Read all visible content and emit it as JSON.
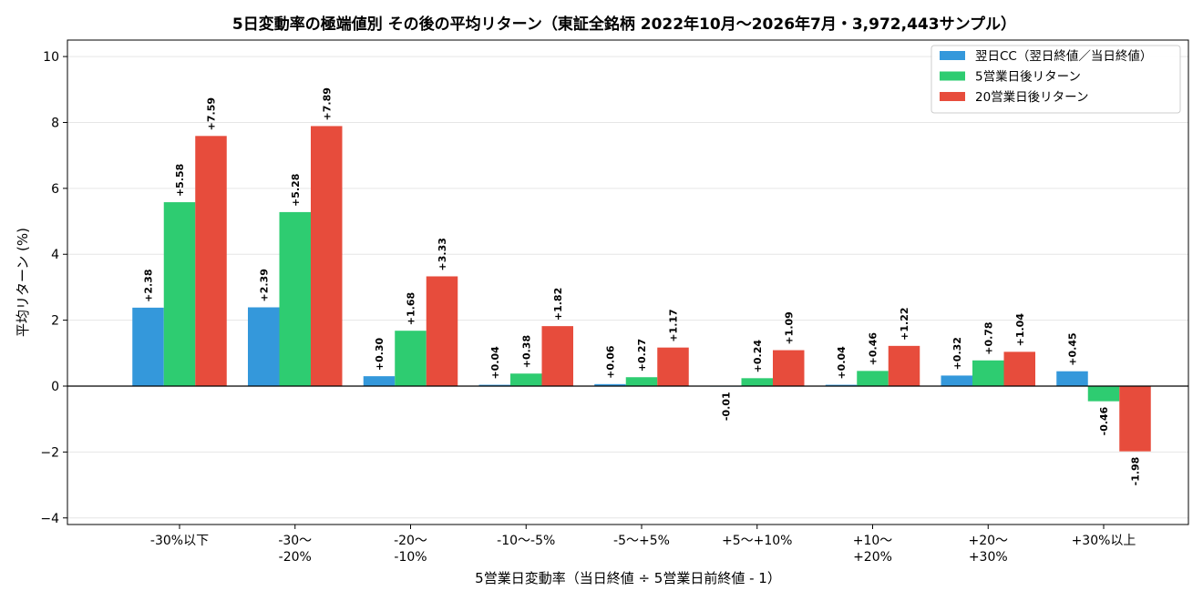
{
  "chart_data": {
    "type": "bar",
    "title": "5日変動率の極端値別 その後の平均リターン（東証全銘柄 2022年10月〜2026年7月・3,972,443サンプル）",
    "xlabel": "5営業日変動率（当日終値 ÷ 5営業日前終値 - 1）",
    "ylabel": "平均リターン (%)",
    "ylim": [
      -4.2,
      10.5
    ],
    "yticks": [
      -4,
      -2,
      0,
      2,
      4,
      6,
      8,
      10
    ],
    "ytick_labels": [
      "−4",
      "−2",
      "0",
      "2",
      "4",
      "6",
      "8",
      "10"
    ],
    "grid": "horizontal",
    "legend_position": "top-right",
    "categories": [
      [
        "-30%以下"
      ],
      [
        "-30〜",
        "-20%"
      ],
      [
        "-20〜",
        "-10%"
      ],
      [
        "-10〜-5%"
      ],
      [
        "-5〜+5%"
      ],
      [
        "+5〜+10%"
      ],
      [
        "+10〜",
        "+20%"
      ],
      [
        "+20〜",
        "+30%"
      ],
      [
        "+30%以上"
      ]
    ],
    "series": [
      {
        "name": "翌日CC（翌日終値／当日終値）",
        "color": "#3498db",
        "values": [
          2.38,
          2.39,
          0.3,
          0.04,
          0.06,
          -0.01,
          0.04,
          0.32,
          0.45
        ],
        "labels": [
          "+2.38",
          "+2.39",
          "+0.30",
          "+0.04",
          "+0.06",
          "-0.01",
          "+0.04",
          "+0.32",
          "+0.45"
        ]
      },
      {
        "name": "5営業日後リターン",
        "color": "#2ecc71",
        "values": [
          5.58,
          5.28,
          1.68,
          0.38,
          0.27,
          0.24,
          0.46,
          0.78,
          -0.46
        ],
        "labels": [
          "+5.58",
          "+5.28",
          "+1.68",
          "+0.38",
          "+0.27",
          "+0.24",
          "+0.46",
          "+0.78",
          "-0.46"
        ]
      },
      {
        "name": "20営業日後リターン",
        "color": "#e74c3c",
        "values": [
          7.59,
          7.89,
          3.33,
          1.82,
          1.17,
          1.09,
          1.22,
          1.04,
          -1.98
        ],
        "labels": [
          "+7.59",
          "+7.89",
          "+3.33",
          "+1.82",
          "+1.17",
          "+1.09",
          "+1.22",
          "+1.04",
          "-1.98"
        ]
      }
    ]
  }
}
